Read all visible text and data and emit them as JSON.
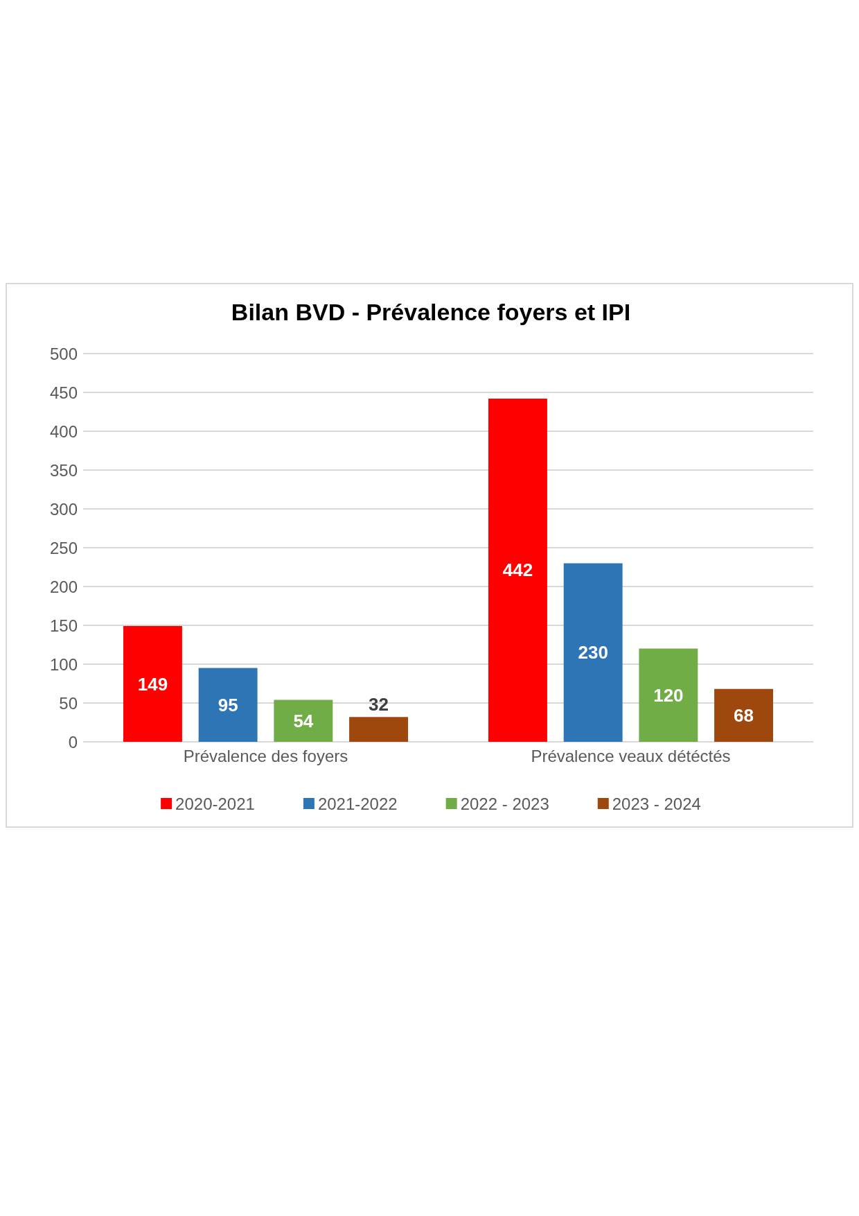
{
  "chart_data": {
    "type": "bar",
    "title": "Bilan BVD - Prévalence foyers et IPI",
    "categories": [
      "Prévalence des foyers",
      "Prévalence veaux détéctés"
    ],
    "series": [
      {
        "name": "2020-2021",
        "color": "#ff0000",
        "values": [
          149,
          442
        ]
      },
      {
        "name": "2021-2022",
        "color": "#2e75b6",
        "values": [
          95,
          230
        ]
      },
      {
        "name": "2022 - 2023",
        "color": "#70ad47",
        "values": [
          54,
          120
        ]
      },
      {
        "name": "2023 - 2024",
        "color": "#9e480e",
        "values": [
          32,
          68
        ]
      }
    ],
    "ylim": [
      0,
      500
    ],
    "yticks": [
      0,
      50,
      100,
      150,
      200,
      250,
      300,
      350,
      400,
      450,
      500
    ],
    "grid": "y",
    "legend": "bottom",
    "data_labels": true
  }
}
